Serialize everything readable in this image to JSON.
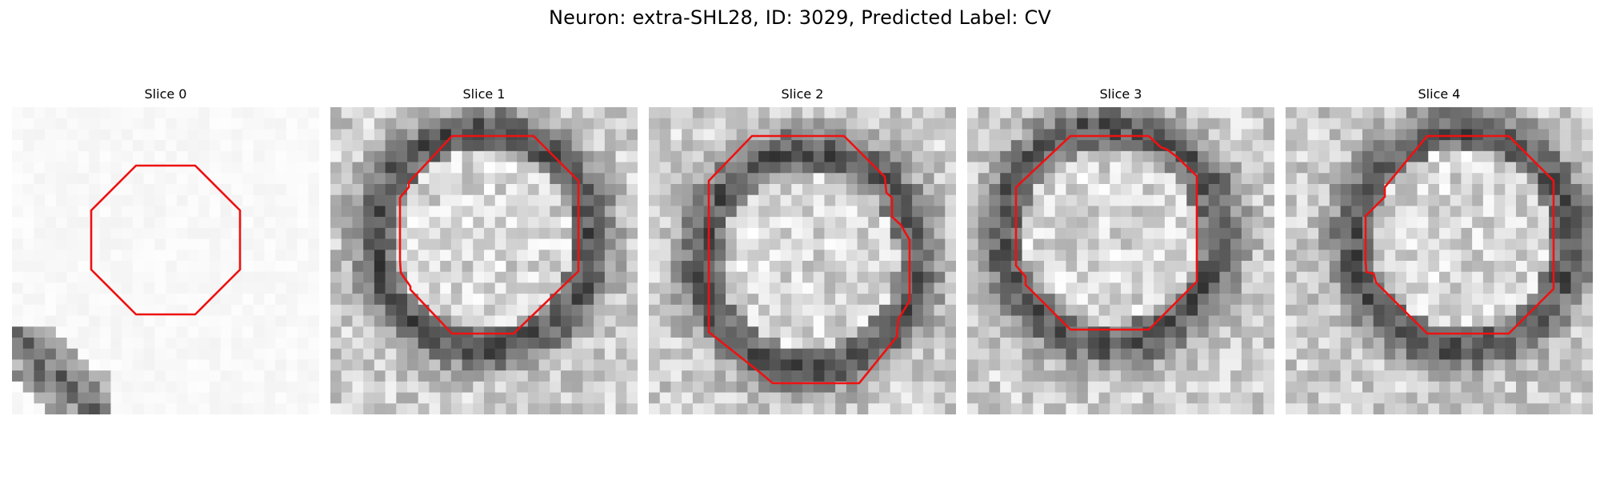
{
  "suptitle": "Neuron: extra-SHL28, ID: 3029, Predicted Label: CV",
  "contour_color": "#ee1111",
  "grid_size": 28,
  "panels": [
    {
      "title": "Slice 0",
      "style": "light"
    },
    {
      "title": "Slice 1",
      "style": "ring"
    },
    {
      "title": "Slice 2",
      "style": "ring"
    },
    {
      "title": "Slice 3",
      "style": "ring"
    },
    {
      "title": "Slice 4",
      "style": "ring"
    }
  ]
}
